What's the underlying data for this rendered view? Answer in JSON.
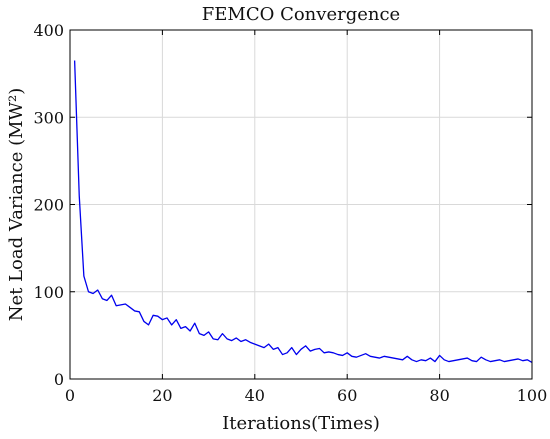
{
  "chart_data": {
    "type": "line",
    "title": "FEMCO Convergence",
    "xlabel": "Iterations(Times)",
    "ylabel": "Net Load Variance (MW²)",
    "xlim": [
      0,
      100
    ],
    "ylim": [
      0,
      400
    ],
    "xticks": [
      0,
      20,
      40,
      60,
      80,
      100
    ],
    "yticks": [
      0,
      100,
      200,
      300,
      400
    ],
    "grid": true,
    "line_color": "#0000ee",
    "series": [
      {
        "x": [
          1,
          2,
          3,
          4,
          5,
          6,
          7,
          8,
          9,
          10,
          11,
          12,
          13,
          14,
          15,
          16,
          17,
          18,
          19,
          20,
          21,
          22,
          23,
          24,
          25,
          26,
          27,
          28,
          29,
          30,
          31,
          32,
          33,
          34,
          35,
          36,
          37,
          38,
          39,
          40,
          41,
          42,
          43,
          44,
          45,
          46,
          47,
          48,
          49,
          50,
          51,
          52,
          53,
          54,
          55,
          56,
          57,
          58,
          59,
          60,
          61,
          62,
          63,
          64,
          65,
          66,
          67,
          68,
          69,
          70,
          71,
          72,
          73,
          74,
          75,
          76,
          77,
          78,
          79,
          80,
          81,
          82,
          83,
          84,
          85,
          86,
          87,
          88,
          89,
          90,
          91,
          92,
          93,
          94,
          95,
          96,
          97,
          98,
          99,
          100
        ],
        "values": [
          365,
          210,
          118,
          100,
          98,
          102,
          92,
          90,
          96,
          84,
          85,
          86,
          82,
          78,
          77,
          66,
          62,
          73,
          72,
          68,
          70,
          62,
          68,
          58,
          60,
          55,
          64,
          52,
          50,
          54,
          46,
          45,
          52,
          46,
          44,
          47,
          43,
          45,
          42,
          40,
          38,
          36,
          40,
          34,
          36,
          28,
          30,
          36,
          28,
          34,
          38,
          32,
          34,
          35,
          30,
          31,
          30,
          28,
          27,
          30,
          26,
          25,
          27,
          29,
          26,
          25,
          24,
          26,
          25,
          24,
          23,
          22,
          26,
          22,
          20,
          22,
          21,
          24,
          20,
          27,
          22,
          20,
          21,
          22,
          23,
          24,
          21,
          20,
          25,
          22,
          20,
          21,
          22,
          20,
          21,
          22,
          23,
          21,
          22,
          19
        ]
      }
    ]
  }
}
